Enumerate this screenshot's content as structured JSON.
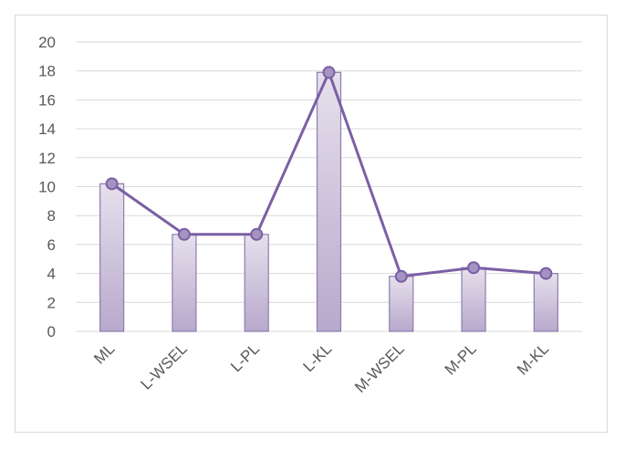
{
  "chart_data": {
    "type": "bar",
    "categories": [
      "ML",
      "L-WSEL",
      "L-PL",
      "L-KL",
      "M-WSEL",
      "M-PL",
      "M-KL"
    ],
    "values": [
      10.2,
      6.7,
      6.7,
      17.9,
      3.8,
      4.4,
      4.0
    ],
    "overlay_line": true,
    "ylim": [
      0,
      20
    ],
    "yticks": [
      0,
      2,
      4,
      6,
      8,
      10,
      12,
      14,
      16,
      18,
      20
    ],
    "ytick_labels": [
      "0",
      "2",
      "4",
      "6",
      "8",
      "10",
      "12",
      "14",
      "16",
      "18",
      "20"
    ],
    "grid": true,
    "legend": "none",
    "title": "",
    "xlabel": "",
    "ylabel": "",
    "colors": {
      "bar_fill_top": "#e6e0ec",
      "bar_fill_bottom": "#b7a9cc",
      "bar_stroke": "#8e7cb0",
      "line": "#7b5fa5",
      "marker_fill": "#a593c2",
      "marker_stroke": "#7b5fa5",
      "grid": "#d9d9d9",
      "axis_text": "#595959"
    }
  }
}
